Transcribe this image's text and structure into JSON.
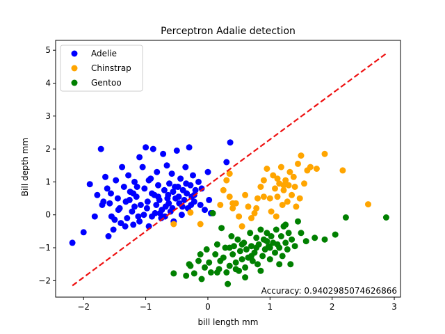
{
  "chart_data": {
    "type": "scatter",
    "title": "Perceptron Adalie detection",
    "xlabel": "bill length mm",
    "ylabel": "Bill depth mm",
    "xlim": [
      -2.45,
      3.1
    ],
    "ylim": [
      -2.5,
      5.3
    ],
    "xticks": [
      -2,
      -1,
      0,
      1,
      2,
      3
    ],
    "yticks": [
      -2,
      -1,
      0,
      1,
      2,
      3,
      4,
      5
    ],
    "grid": false,
    "legend_position": "top-left",
    "annotation": "Accuracy: 0.9402985074626866",
    "decision_line": {
      "color": "#ee1111",
      "style": "dashed",
      "x": [
        -2.18,
        2.87
      ],
      "y": [
        -2.15,
        4.9
      ]
    },
    "series": [
      {
        "name": "Adelie",
        "color": "#0000ff",
        "points": [
          [
            -2.18,
            -0.85
          ],
          [
            -2.0,
            -0.53
          ],
          [
            -1.9,
            0.93
          ],
          [
            -1.82,
            -0.05
          ],
          [
            -1.72,
            2.0
          ],
          [
            -1.78,
            0.6
          ],
          [
            -1.65,
            1.15
          ],
          [
            -1.62,
            0.8
          ],
          [
            -1.58,
            0.35
          ],
          [
            -1.55,
            -0.05
          ],
          [
            -1.6,
            -0.65
          ],
          [
            -1.52,
            -0.45
          ],
          [
            -1.48,
            1.05
          ],
          [
            -1.45,
            0.5
          ],
          [
            -1.42,
            0.2
          ],
          [
            -1.4,
            -0.25
          ],
          [
            -1.38,
            1.45
          ],
          [
            -1.35,
            0.85
          ],
          [
            -1.32,
            0.4
          ],
          [
            -1.3,
            -0.1
          ],
          [
            -1.28,
            1.2
          ],
          [
            -1.25,
            0.7
          ],
          [
            -1.22,
            0.1
          ],
          [
            -1.2,
            -0.3
          ],
          [
            -1.18,
            1.0
          ],
          [
            -1.15,
            0.55
          ],
          [
            -1.12,
            -0.05
          ],
          [
            -1.1,
            1.75
          ],
          [
            -1.08,
            0.3
          ],
          [
            -1.05,
            1.45
          ],
          [
            -1.02,
            0.8
          ],
          [
            -1.0,
            2.05
          ],
          [
            -0.98,
            0.2
          ],
          [
            -0.95,
            -0.35
          ],
          [
            -0.92,
            1.1
          ],
          [
            -0.9,
            0.65
          ],
          [
            -0.88,
            2.0
          ],
          [
            -0.85,
            0.05
          ],
          [
            -0.82,
            1.3
          ],
          [
            -0.8,
            0.9
          ],
          [
            -0.78,
            0.45
          ],
          [
            -0.75,
            -0.1
          ],
          [
            -0.72,
            1.85
          ],
          [
            -0.7,
            0.75
          ],
          [
            -0.68,
            0.25
          ],
          [
            -0.66,
            1.5
          ],
          [
            -0.64,
            0.6
          ],
          [
            -0.62,
            0.95
          ],
          [
            -0.6,
            0.1
          ],
          [
            -0.58,
            1.25
          ],
          [
            -0.56,
            0.7
          ],
          [
            -0.55,
            -0.2
          ],
          [
            -0.52,
            0.5
          ],
          [
            -0.5,
            1.95
          ],
          [
            -0.48,
            0.85
          ],
          [
            -0.46,
            0.35
          ],
          [
            -0.44,
            1.1
          ],
          [
            -0.42,
            0.0
          ],
          [
            -0.4,
            0.75
          ],
          [
            -0.38,
            0.45
          ],
          [
            -0.36,
            1.45
          ],
          [
            -0.34,
            0.65
          ],
          [
            -0.32,
            0.2
          ],
          [
            -0.3,
            2.05
          ],
          [
            -0.28,
            0.9
          ],
          [
            -0.26,
            0.55
          ],
          [
            -0.24,
            1.2
          ],
          [
            -0.22,
            0.4
          ],
          [
            -0.2,
            0.75
          ],
          [
            -0.15,
            1.0
          ],
          [
            -0.12,
            0.3
          ],
          [
            -0.1,
            0.8
          ],
          [
            -0.05,
            0.15
          ],
          [
            0.0,
            1.3
          ],
          [
            0.02,
            0.45
          ],
          [
            0.05,
            0.05
          ],
          [
            0.3,
            1.6
          ],
          [
            0.36,
            2.2
          ],
          [
            -1.7,
            0.3
          ],
          [
            -1.5,
            -0.15
          ],
          [
            -1.33,
            -0.35
          ],
          [
            -1.18,
            0.25
          ],
          [
            -1.03,
            0.0
          ],
          [
            -0.97,
            0.4
          ],
          [
            -0.86,
            0.6
          ],
          [
            -0.83,
            0.3
          ],
          [
            -0.74,
            0.15
          ],
          [
            -0.69,
            -0.05
          ],
          [
            -0.63,
            0.35
          ],
          [
            -0.57,
            0.2
          ],
          [
            -0.95,
            1.05
          ],
          [
            -1.14,
            0.85
          ],
          [
            -1.26,
            0.45
          ],
          [
            -1.44,
            0.15
          ],
          [
            -1.56,
            0.65
          ],
          [
            -1.68,
            0.4
          ],
          [
            -0.77,
            0.05
          ],
          [
            -0.65,
            0.5
          ],
          [
            -0.53,
            0.85
          ],
          [
            -0.47,
            0.55
          ],
          [
            -0.41,
            0.25
          ],
          [
            -0.35,
            0.95
          ],
          [
            -0.27,
            0.3
          ],
          [
            -0.22,
            0.6
          ],
          [
            -1.1,
            -0.2
          ],
          [
            -1.2,
            0.65
          ],
          [
            -0.9,
            -0.05
          ],
          [
            -0.8,
            0.55
          ]
        ]
      },
      {
        "name": "Chinstrap",
        "color": "#ffa500",
        "points": [
          [
            -0.55,
            -0.28
          ],
          [
            -0.28,
            0.07
          ],
          [
            -0.12,
            -0.28
          ],
          [
            0.2,
            0.3
          ],
          [
            0.25,
            0.75
          ],
          [
            0.3,
            1.05
          ],
          [
            0.35,
            0.55
          ],
          [
            0.4,
            0.2
          ],
          [
            0.45,
            0.35
          ],
          [
            0.5,
            -0.05
          ],
          [
            0.55,
            -0.35
          ],
          [
            0.6,
            0.6
          ],
          [
            0.65,
            0.25
          ],
          [
            0.7,
            -0.1
          ],
          [
            0.75,
            0.05
          ],
          [
            0.8,
            0.5
          ],
          [
            0.85,
            0.85
          ],
          [
            0.9,
            1.05
          ],
          [
            0.95,
            1.4
          ],
          [
            1.0,
            0.5
          ],
          [
            1.02,
            0.1
          ],
          [
            1.05,
            1.2
          ],
          [
            1.08,
            0.8
          ],
          [
            1.1,
            -0.05
          ],
          [
            1.12,
            0.55
          ],
          [
            1.15,
            0.95
          ],
          [
            1.18,
            1.45
          ],
          [
            1.2,
            0.3
          ],
          [
            1.22,
            0.75
          ],
          [
            1.25,
            1.05
          ],
          [
            1.28,
            0.4
          ],
          [
            1.3,
            0.9
          ],
          [
            1.32,
            1.3
          ],
          [
            1.35,
            0.6
          ],
          [
            1.38,
            1.15
          ],
          [
            1.4,
            0.85
          ],
          [
            1.42,
            0.25
          ],
          [
            1.45,
            1.55
          ],
          [
            1.48,
            0.5
          ],
          [
            1.5,
            1.8
          ],
          [
            1.55,
            0.95
          ],
          [
            1.6,
            1.35
          ],
          [
            1.65,
            1.45
          ],
          [
            1.75,
            1.4
          ],
          [
            1.88,
            1.85
          ],
          [
            2.17,
            1.35
          ],
          [
            2.58,
            0.32
          ],
          [
            0.4,
            0.35
          ],
          [
            0.9,
            0.55
          ],
          [
            0.35,
            1.25
          ],
          [
            1.12,
            1.1
          ],
          [
            1.22,
            0.9
          ],
          [
            0.78,
            0.2
          ]
        ]
      },
      {
        "name": "Gentoo",
        "color": "#008000",
        "points": [
          [
            -0.55,
            -1.78
          ],
          [
            -0.35,
            -1.85
          ],
          [
            -0.28,
            -1.55
          ],
          [
            -0.22,
            -1.78
          ],
          [
            -0.15,
            -1.4
          ],
          [
            -0.12,
            -1.2
          ],
          [
            -0.1,
            -1.95
          ],
          [
            -0.05,
            -1.6
          ],
          [
            -0.02,
            -1.05
          ],
          [
            0.02,
            -1.45
          ],
          [
            0.05,
            -1.75
          ],
          [
            0.08,
            0.05
          ],
          [
            0.12,
            -1.2
          ],
          [
            0.15,
            -0.9
          ],
          [
            0.18,
            -1.65
          ],
          [
            0.22,
            -0.4
          ],
          [
            0.25,
            -1.3
          ],
          [
            0.28,
            -1.0
          ],
          [
            0.3,
            -1.75
          ],
          [
            0.32,
            -2.1
          ],
          [
            0.35,
            -1.55
          ],
          [
            0.38,
            -0.65
          ],
          [
            0.4,
            -1.2
          ],
          [
            0.42,
            -0.95
          ],
          [
            0.45,
            -1.45
          ],
          [
            0.48,
            -0.75
          ],
          [
            0.5,
            -1.7
          ],
          [
            0.52,
            -1.1
          ],
          [
            0.55,
            -1.35
          ],
          [
            0.58,
            -0.85
          ],
          [
            0.6,
            -1.6
          ],
          [
            0.62,
            -1.05
          ],
          [
            0.65,
            -1.3
          ],
          [
            0.68,
            -0.55
          ],
          [
            0.7,
            -0.95
          ],
          [
            0.72,
            -1.4
          ],
          [
            0.75,
            -1.15
          ],
          [
            0.78,
            -0.7
          ],
          [
            0.8,
            -1.5
          ],
          [
            0.82,
            -0.9
          ],
          [
            0.85,
            -0.45
          ],
          [
            0.88,
            -1.25
          ],
          [
            0.9,
            -0.75
          ],
          [
            0.92,
            -1.05
          ],
          [
            0.95,
            -0.55
          ],
          [
            0.98,
            -0.95
          ],
          [
            1.0,
            -1.35
          ],
          [
            1.02,
            -0.65
          ],
          [
            1.05,
            -0.85
          ],
          [
            1.08,
            -1.15
          ],
          [
            1.1,
            -0.45
          ],
          [
            1.12,
            -0.9
          ],
          [
            1.15,
            -1.0
          ],
          [
            1.18,
            -0.65
          ],
          [
            1.2,
            -1.25
          ],
          [
            1.22,
            -0.35
          ],
          [
            1.25,
            -0.85
          ],
          [
            1.28,
            -1.05
          ],
          [
            1.3,
            -0.55
          ],
          [
            1.35,
            -0.75
          ],
          [
            1.4,
            -0.95
          ],
          [
            1.45,
            -0.2
          ],
          [
            1.5,
            -0.55
          ],
          [
            1.58,
            -0.8
          ],
          [
            1.72,
            -0.7
          ],
          [
            1.88,
            -0.75
          ],
          [
            2.05,
            -0.6
          ],
          [
            2.22,
            -0.08
          ],
          [
            2.87,
            -0.08
          ],
          [
            1.33,
            -1.5
          ],
          [
            1.15,
            -1.5
          ],
          [
            0.85,
            -1.7
          ],
          [
            0.6,
            -1.9
          ],
          [
            0.45,
            -1.65
          ],
          [
            0.15,
            -1.75
          ],
          [
            -0.3,
            -1.5
          ],
          [
            0.2,
            -1.4
          ],
          [
            0.7,
            -1.25
          ],
          [
            1.0,
            -1.0
          ],
          [
            1.25,
            -0.3
          ],
          [
            0.55,
            -0.9
          ],
          [
            0.95,
            -0.8
          ],
          [
            0.35,
            -1.0
          ],
          [
            0.78,
            -1.0
          ]
        ]
      }
    ]
  }
}
